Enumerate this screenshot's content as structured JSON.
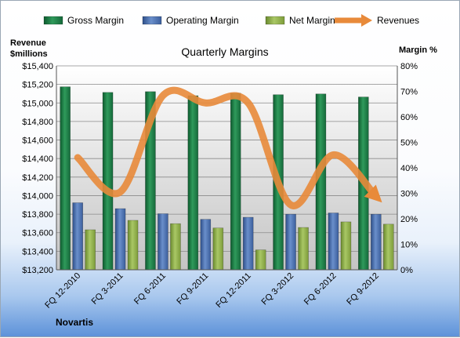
{
  "chart_data": {
    "type": "bar",
    "title": "Quarterly Margins",
    "categories": [
      "FQ 12-2010",
      "FQ 3-2011",
      "FQ 6-2011",
      "FQ 9-2011",
      "FQ 12-2011",
      "FQ 3-2012",
      "FQ 6-2012",
      "FQ 9-2012"
    ],
    "left_axis": {
      "label_line1": "Revenue",
      "label_line2": "$millions",
      "ylim": [
        13200,
        15400
      ],
      "ticks": [
        "$15,400",
        "$15,200",
        "$15,000",
        "$14,800",
        "$14,600",
        "$14,400",
        "$14,200",
        "$14,000",
        "$13,800",
        "$13,600",
        "$13,400",
        "$13,200"
      ],
      "tick_values": [
        15400,
        15200,
        15000,
        14800,
        14600,
        14400,
        14200,
        14000,
        13800,
        13600,
        13400,
        13200
      ]
    },
    "right_axis": {
      "label": "Margin %",
      "ylim": [
        0,
        80
      ],
      "ticks": [
        "80%",
        "70%",
        "60%",
        "50%",
        "40%",
        "30%",
        "20%",
        "10%",
        "0%"
      ],
      "tick_values": [
        80,
        70,
        60,
        50,
        40,
        30,
        20,
        10,
        0
      ]
    },
    "series": [
      {
        "name": "Gross Margin",
        "axis": "right",
        "kind": "bar",
        "color": "#1e7d46",
        "values": [
          71.8,
          69.6,
          69.9,
          68.3,
          69.3,
          68.7,
          69.0,
          67.8
        ]
      },
      {
        "name": "Operating Margin",
        "axis": "right",
        "kind": "bar",
        "color": "#4a6fad",
        "values": [
          26.3,
          24.0,
          22.0,
          19.8,
          20.6,
          21.8,
          22.3,
          21.8
        ]
      },
      {
        "name": "Net Margin",
        "axis": "right",
        "kind": "bar",
        "color": "#8fae4a",
        "values": [
          15.7,
          19.4,
          18.1,
          16.4,
          7.8,
          16.6,
          18.8,
          17.9
        ]
      },
      {
        "name": "Revenues",
        "axis": "left",
        "kind": "line",
        "color": "#e88a3a",
        "values": [
          14410,
          14040,
          15080,
          15000,
          15000,
          13900,
          14440,
          13990
        ]
      }
    ],
    "grid": true,
    "legend_position": "top",
    "footer_text": "Novartis"
  }
}
